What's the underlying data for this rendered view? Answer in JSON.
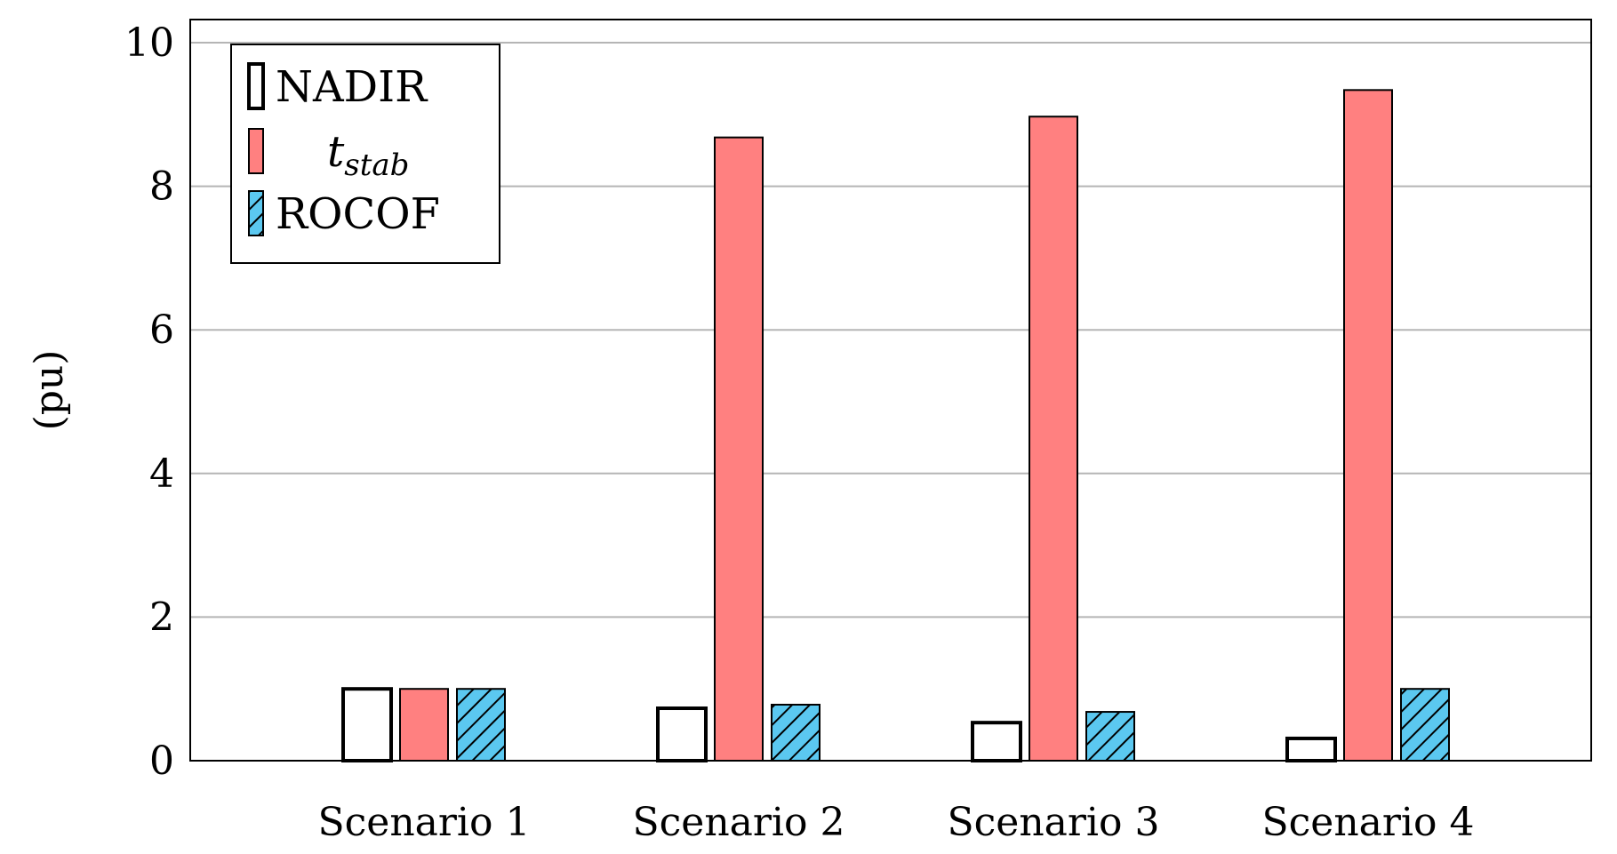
{
  "chart_data": {
    "type": "bar",
    "title": "",
    "xlabel": "",
    "ylabel": "(pu)",
    "ylim": [
      0,
      10
    ],
    "yticks": [
      0,
      2,
      4,
      6,
      8,
      10
    ],
    "grid": true,
    "legend_position": "top-left",
    "categories": [
      "Scenario 1",
      "Scenario 2",
      "Scenario 3",
      "Scenario 4"
    ],
    "series": [
      {
        "name": "NADIR",
        "values": [
          1.0,
          0.73,
          0.53,
          0.31
        ],
        "color": "#ffffff",
        "pattern": "none"
      },
      {
        "name": "t",
        "name_subscript": "stab",
        "values": [
          1.0,
          8.68,
          8.97,
          9.34
        ],
        "color": "#ff8080",
        "pattern": "none"
      },
      {
        "name": "ROCOF",
        "values": [
          1.0,
          0.78,
          0.68,
          1.0
        ],
        "color": "#5bc8f0",
        "pattern": "hatch"
      }
    ]
  }
}
